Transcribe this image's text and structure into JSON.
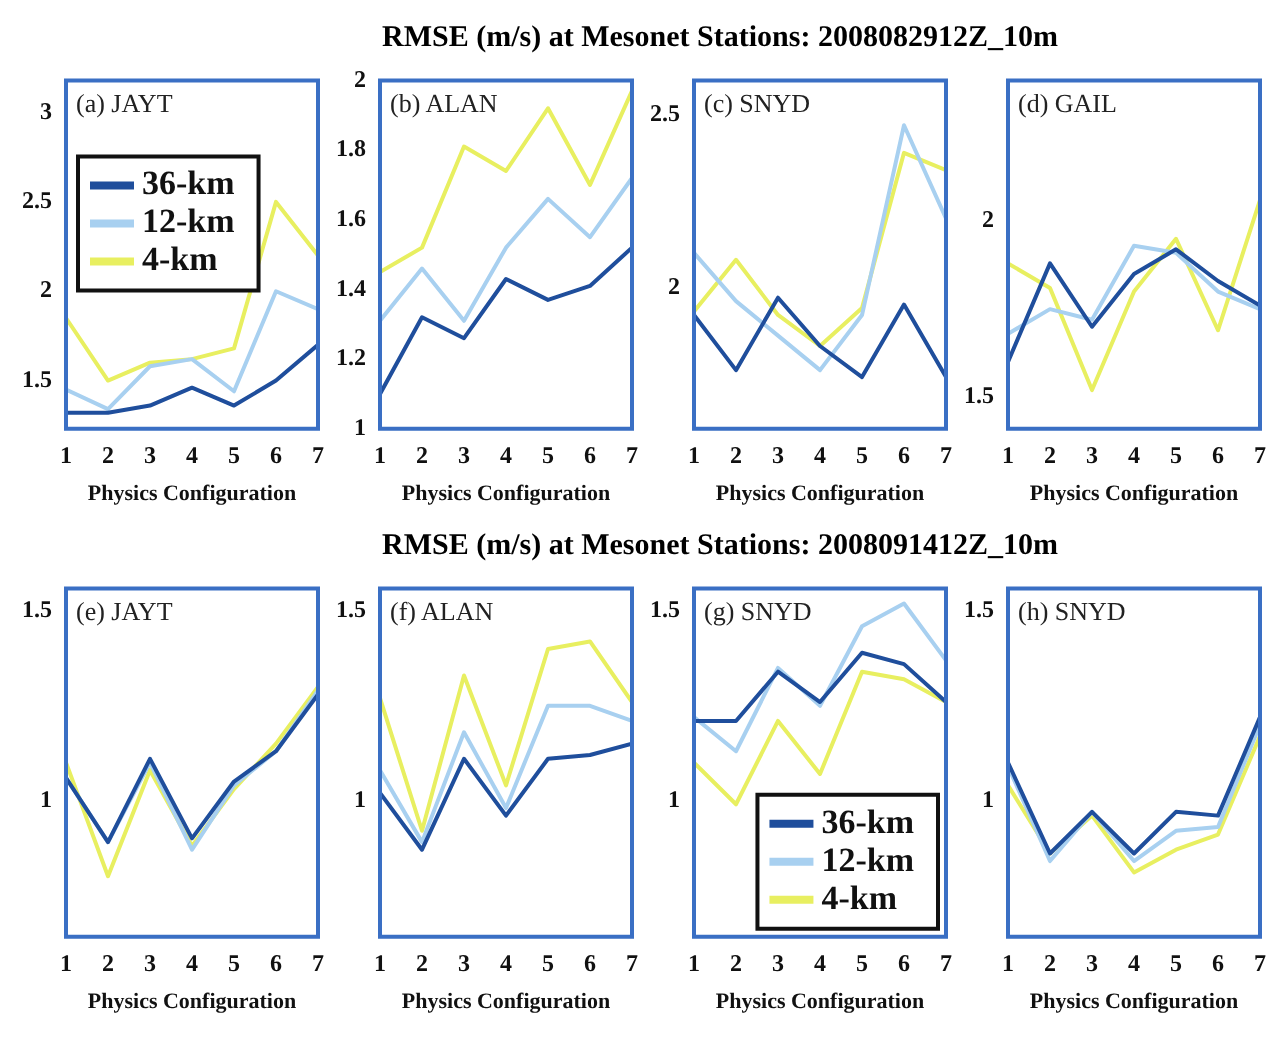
{
  "chart_data": [
    {
      "type": "line",
      "annotations": [
        "(a) JAYT"
      ],
      "xlabel": "Physics Configuration",
      "x": [
        1,
        2,
        3,
        4,
        5,
        6,
        7
      ],
      "xlim": [
        1,
        7
      ],
      "xticks": [
        1,
        2,
        3,
        4,
        5,
        6,
        7
      ],
      "ylim": [
        1.23,
        3.18
      ],
      "yticks": [
        1.5,
        2,
        2.5,
        3
      ],
      "legend": "top left",
      "series": [
        {
          "name": "36-km",
          "color": "#1f4e9c",
          "values": [
            1.32,
            1.32,
            1.36,
            1.46,
            1.36,
            1.5,
            1.7
          ]
        },
        {
          "name": "12-km",
          "color": "#a8d0f0",
          "values": [
            1.45,
            1.34,
            1.58,
            1.62,
            1.44,
            2.0,
            1.9
          ]
        },
        {
          "name": "4-km",
          "color": "#e8ef60",
          "values": [
            1.85,
            1.5,
            1.6,
            1.62,
            1.68,
            2.5,
            2.2
          ]
        }
      ]
    },
    {
      "type": "line",
      "annotations": [
        "(b) ALAN"
      ],
      "xlabel": "Physics Configuration",
      "x": [
        1,
        2,
        3,
        4,
        5,
        6,
        7
      ],
      "xlim": [
        1,
        7
      ],
      "xticks": [
        1,
        2,
        3,
        4,
        5,
        6,
        7
      ],
      "ylim": [
        1,
        2
      ],
      "yticks": [
        1,
        1.2,
        1.4,
        1.6,
        1.8,
        2
      ],
      "series": [
        {
          "color": "#1f4e9c",
          "values": [
            1.1,
            1.32,
            1.26,
            1.43,
            1.37,
            1.41,
            1.52
          ]
        },
        {
          "color": "#a8d0f0",
          "values": [
            1.31,
            1.46,
            1.31,
            1.52,
            1.66,
            1.55,
            1.72
          ]
        },
        {
          "color": "#e8ef60",
          "values": [
            1.45,
            1.52,
            1.81,
            1.74,
            1.92,
            1.7,
            1.97
          ]
        }
      ]
    },
    {
      "type": "line",
      "title": "RMSE (m/s) at Mesonet Stations: 2008082912Z_10m",
      "annotations": [
        "(c) SNYD"
      ],
      "xlabel": "Physics Configuration",
      "x": [
        1,
        2,
        3,
        4,
        5,
        6,
        7
      ],
      "xlim": [
        1,
        7
      ],
      "xticks": [
        1,
        2,
        3,
        4,
        5,
        6,
        7
      ],
      "ylim": [
        1.59,
        2.6
      ],
      "yticks": [
        2,
        2.5
      ],
      "series": [
        {
          "color": "#1f4e9c",
          "values": [
            1.92,
            1.76,
            1.97,
            1.83,
            1.74,
            1.95,
            1.74
          ]
        },
        {
          "color": "#a8d0f0",
          "values": [
            2.1,
            1.96,
            1.86,
            1.76,
            1.92,
            2.47,
            2.2
          ]
        },
        {
          "color": "#e8ef60",
          "values": [
            1.93,
            2.08,
            1.92,
            1.83,
            1.94,
            2.39,
            2.34
          ]
        }
      ]
    },
    {
      "type": "line",
      "annotations": [
        "(d) GAIL"
      ],
      "xlabel": "Physics Configuration",
      "x": [
        1,
        2,
        3,
        4,
        5,
        6,
        7
      ],
      "xlim": [
        1,
        7
      ],
      "xticks": [
        1,
        2,
        3,
        4,
        5,
        6,
        7
      ],
      "ylim": [
        1.41,
        2.4
      ],
      "yticks": [
        1.5,
        2
      ],
      "series": [
        {
          "color": "#1f4e9c",
          "values": [
            1.6,
            1.88,
            1.7,
            1.85,
            1.92,
            1.83,
            1.76
          ]
        },
        {
          "color": "#a8d0f0",
          "values": [
            1.68,
            1.75,
            1.72,
            1.93,
            1.91,
            1.8,
            1.75
          ]
        },
        {
          "color": "#e8ef60",
          "values": [
            1.88,
            1.81,
            1.52,
            1.8,
            1.95,
            1.69,
            2.06
          ]
        }
      ]
    },
    {
      "type": "line",
      "annotations": [
        "(e) JAYT"
      ],
      "xlabel": "Physics Configuration",
      "x": [
        1,
        2,
        3,
        4,
        5,
        6,
        7
      ],
      "xlim": [
        1,
        7
      ],
      "xticks": [
        1,
        2,
        3,
        4,
        5,
        6,
        7
      ],
      "ylim": [
        0.64,
        1.56
      ],
      "yticks": [
        1,
        1.5
      ],
      "series": [
        {
          "color": "#1f4e9c",
          "values": [
            1.06,
            0.89,
            1.11,
            0.9,
            1.05,
            1.13,
            1.28
          ]
        },
        {
          "color": "#a8d0f0",
          "values": [
            1.06,
            0.89,
            1.1,
            0.87,
            1.04,
            1.13,
            1.29
          ]
        },
        {
          "color": "#e8ef60",
          "values": [
            1.1,
            0.8,
            1.08,
            0.88,
            1.03,
            1.15,
            1.3
          ]
        }
      ]
    },
    {
      "type": "line",
      "annotations": [
        "(f) ALAN"
      ],
      "xlabel": "Physics Configuration",
      "x": [
        1,
        2,
        3,
        4,
        5,
        6,
        7
      ],
      "xlim": [
        1,
        7
      ],
      "xticks": [
        1,
        2,
        3,
        4,
        5,
        6,
        7
      ],
      "ylim": [
        0.64,
        1.56
      ],
      "yticks": [
        1,
        1.5
      ],
      "series": [
        {
          "color": "#1f4e9c",
          "values": [
            1.02,
            0.87,
            1.11,
            0.96,
            1.11,
            1.12,
            1.15
          ]
        },
        {
          "color": "#a8d0f0",
          "values": [
            1.08,
            0.89,
            1.18,
            0.98,
            1.25,
            1.25,
            1.21
          ]
        },
        {
          "color": "#e8ef60",
          "values": [
            1.27,
            0.92,
            1.33,
            1.04,
            1.4,
            1.42,
            1.26
          ]
        }
      ]
    },
    {
      "type": "line",
      "title": "RMSE (m/s) at Mesonet Stations: 2008091412Z_10m",
      "annotations": [
        "(g) SNYD"
      ],
      "xlabel": "Physics Configuration",
      "x": [
        1,
        2,
        3,
        4,
        5,
        6,
        7
      ],
      "xlim": [
        1,
        7
      ],
      "xticks": [
        1,
        2,
        3,
        4,
        5,
        6,
        7
      ],
      "ylim": [
        0.64,
        1.56
      ],
      "yticks": [
        1,
        1.5
      ],
      "legend": "bottom right",
      "series": [
        {
          "name": "36-km",
          "color": "#1f4e9c",
          "values": [
            1.21,
            1.21,
            1.34,
            1.26,
            1.39,
            1.36,
            1.26
          ]
        },
        {
          "name": "12-km",
          "color": "#a8d0f0",
          "values": [
            1.22,
            1.13,
            1.35,
            1.25,
            1.46,
            1.52,
            1.37
          ]
        },
        {
          "name": "4-km",
          "color": "#e8ef60",
          "values": [
            1.1,
            0.99,
            1.21,
            1.07,
            1.34,
            1.32,
            1.26
          ]
        }
      ]
    },
    {
      "type": "line",
      "annotations": [
        "(h) SNYD"
      ],
      "xlabel": "Physics Configuration",
      "x": [
        1,
        2,
        3,
        4,
        5,
        6,
        7
      ],
      "xlim": [
        1,
        7
      ],
      "xticks": [
        1,
        2,
        3,
        4,
        5,
        6,
        7
      ],
      "ylim": [
        0.64,
        1.56
      ],
      "yticks": [
        1,
        1.5
      ],
      "series": [
        {
          "color": "#1f4e9c",
          "values": [
            1.1,
            0.86,
            0.97,
            0.86,
            0.97,
            0.96,
            1.22
          ]
        },
        {
          "color": "#a8d0f0",
          "values": [
            1.09,
            0.84,
            0.97,
            0.84,
            0.92,
            0.93,
            1.2
          ]
        },
        {
          "color": "#e8ef60",
          "values": [
            1.04,
            0.86,
            0.96,
            0.81,
            0.87,
            0.91,
            1.17
          ]
        }
      ]
    }
  ]
}
